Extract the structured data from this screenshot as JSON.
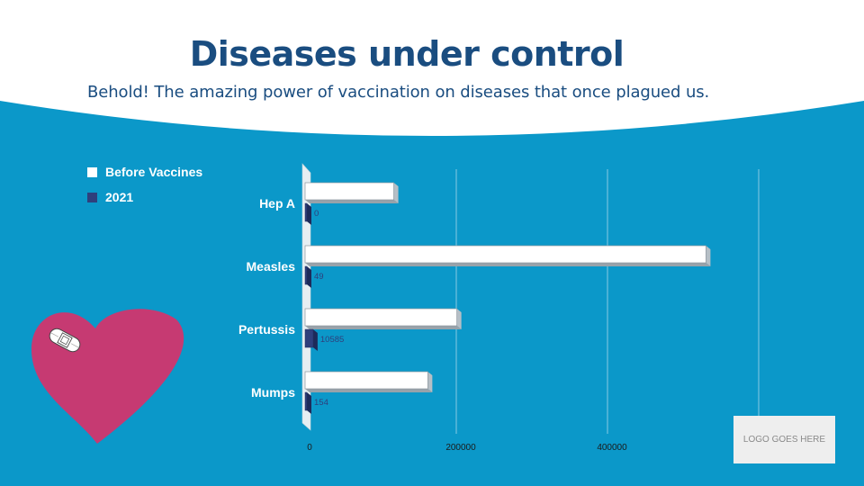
{
  "title": "Diseases under control",
  "subtitle": "Behold! The amazing power of vaccination on diseases that once plagued us.",
  "logo_text": "LOGO GOES HERE",
  "colors": {
    "background": "#0b98c9",
    "title": "#1a4d80",
    "series_before": "#ffffff",
    "series_2021": "#2f3f7c",
    "heart": "#c63a72"
  },
  "icons": [
    "heart-icon",
    "bandage-icon"
  ],
  "chart_data": {
    "type": "bar",
    "orientation": "horizontal",
    "categories": [
      "Hep A",
      "Measles",
      "Pertussis",
      "Mumps"
    ],
    "series": [
      {
        "name": "Before Vaccines",
        "values": [
          117333,
          530217,
          200752,
          162344
        ]
      },
      {
        "name": "2021",
        "values": [
          0,
          49,
          10585,
          154
        ]
      }
    ],
    "data_labels": [
      "0",
      "49",
      "10585",
      "154"
    ],
    "x_ticks": [
      "0",
      "200000",
      "400000"
    ],
    "xlim": [
      0,
      600000
    ],
    "grid": true,
    "legend_position": "top-left"
  }
}
